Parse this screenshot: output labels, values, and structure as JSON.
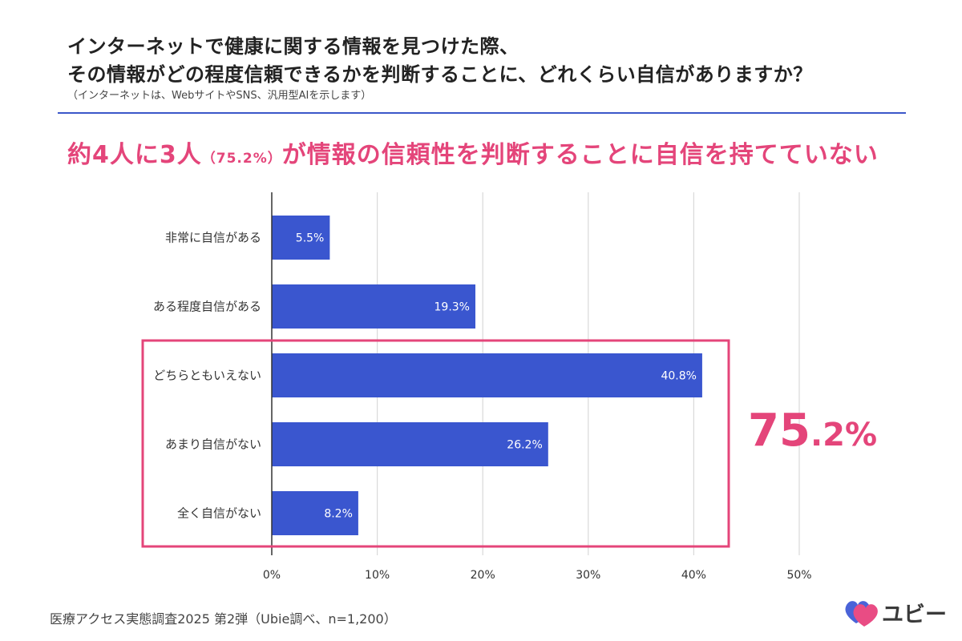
{
  "header": {
    "title_line1": "インターネットで健康に関する情報を見つけた際、",
    "title_line2": "その情報がどの程度信頼できるかを判断することに、どれくらい自信がありますか？",
    "note": "（インターネットは、WebサイトやSNS、汎用型AIを示します）"
  },
  "headline": {
    "part1": "約4人に3人",
    "part2": "（75.2%）",
    "part3": "が情報の信頼性を判断することに自信を持てていない"
  },
  "highlight": {
    "value_int": "75",
    "value_dec": ".2%",
    "color": "#e4457a"
  },
  "chart_data": {
    "type": "bar",
    "orientation": "horizontal",
    "categories": [
      "非常に自信がある",
      "ある程度自信がある",
      "どちらともいえない",
      "あまり自信がない",
      "全く自信がない"
    ],
    "values": [
      5.5,
      19.3,
      40.8,
      26.2,
      8.2
    ],
    "value_labels": [
      "5.5%",
      "19.3%",
      "40.8%",
      "26.2%",
      "8.2%"
    ],
    "xlim": [
      0,
      50
    ],
    "xticks": [
      0,
      10,
      20,
      30,
      40,
      50
    ],
    "xtick_labels": [
      "0%",
      "10%",
      "20%",
      "30%",
      "40%",
      "50%"
    ],
    "grid": true,
    "bar_color": "#3a56cf",
    "highlight_box_categories": [
      "どちらともいえない",
      "あまり自信がない",
      "全く自信がない"
    ],
    "highlight_color": "#e4457a"
  },
  "footer": {
    "source": "医療アクセス実態調査2025 第2弾（Ubie調べ、n=1,200）"
  },
  "logo": {
    "text": "ユビー",
    "icon": "heart-logo-icon"
  }
}
